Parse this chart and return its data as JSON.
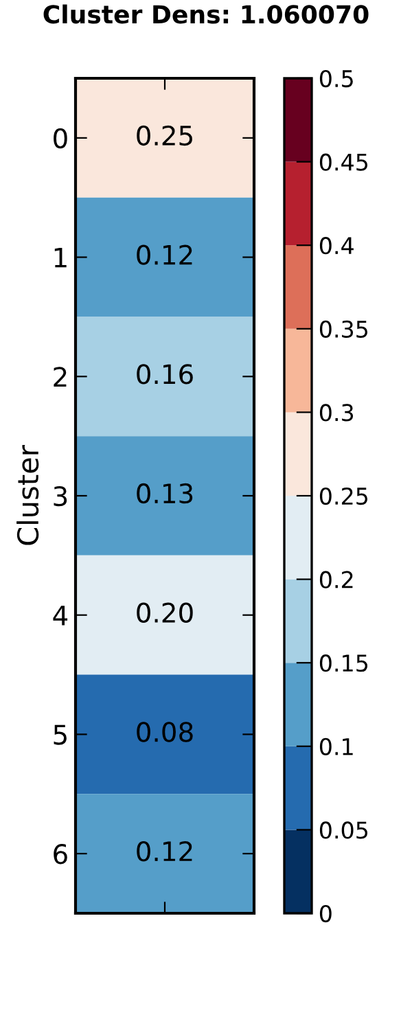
{
  "chart_data": {
    "type": "heatmap",
    "title": "Cluster Dens: 1.060070",
    "ylabel": "Cluster",
    "categories": [
      null
    ],
    "y_categories": [
      "0",
      "1",
      "2",
      "3",
      "4",
      "5",
      "6"
    ],
    "cells": [
      [
        0.25
      ],
      [
        0.12
      ],
      [
        0.16
      ],
      [
        0.13
      ],
      [
        0.2
      ],
      [
        0.08
      ],
      [
        0.12
      ]
    ],
    "cell_labels": [
      [
        "0.25"
      ],
      [
        "0.12"
      ],
      [
        "0.16"
      ],
      [
        "0.13"
      ],
      [
        "0.20"
      ],
      [
        "0.08"
      ],
      [
        "0.12"
      ]
    ],
    "clim": [
      0,
      0.5
    ],
    "cticks": [
      0,
      0.05,
      0.1,
      0.15,
      0.2,
      0.25,
      0.3,
      0.35,
      0.4,
      0.45,
      0.5
    ]
  }
}
